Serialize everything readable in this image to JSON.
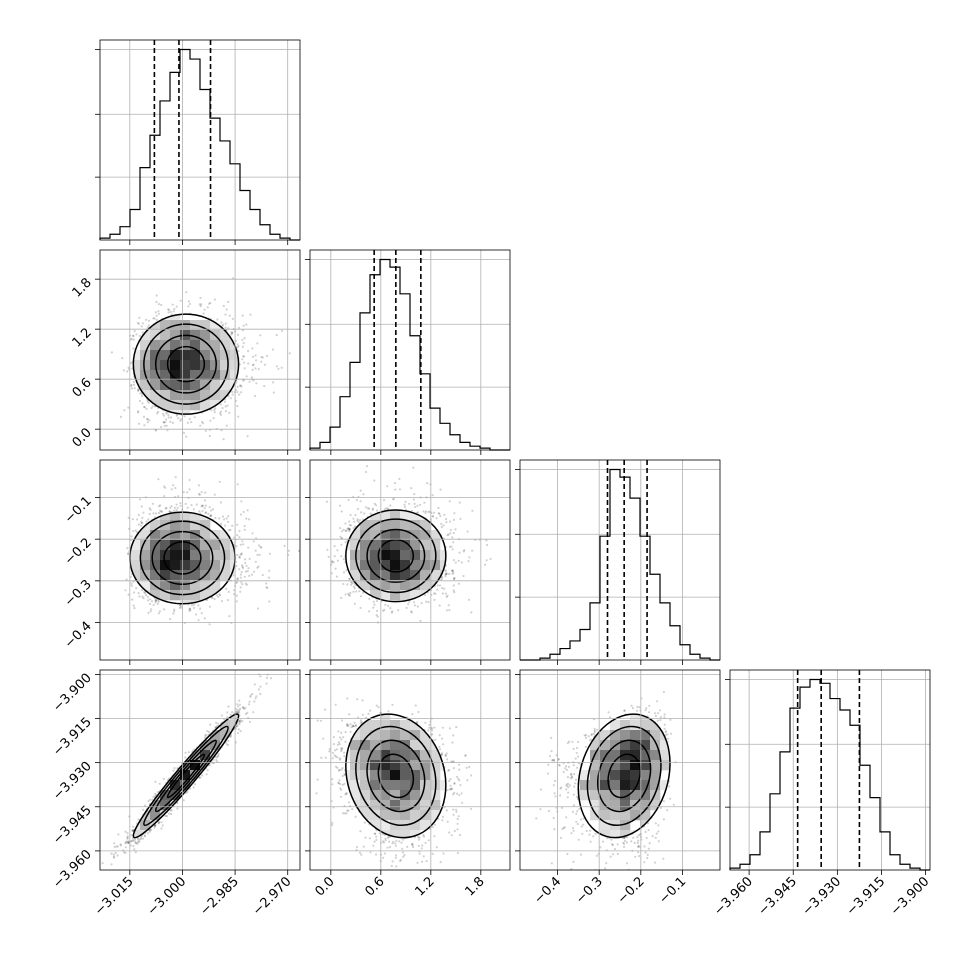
{
  "chart_data": {
    "type": "corner",
    "variables": [
      {
        "ticks": [
          -3.015,
          -3.0,
          -2.985,
          -2.97
        ],
        "tick_labels": [
          "−3.015",
          "−3.000",
          "−2.985",
          "−2.970"
        ],
        "range": [
          -3.0235,
          -2.9665
        ],
        "quantiles": [
          -3.008,
          -3.001,
          -2.992
        ]
      },
      {
        "ticks": [
          0.0,
          0.6,
          1.2,
          1.8
        ],
        "tick_labels": [
          "0.0",
          "0.6",
          "1.2",
          "1.8"
        ],
        "range": [
          -0.25,
          2.15
        ],
        "quantiles": [
          0.52,
          0.78,
          1.08
        ]
      },
      {
        "ticks": [
          -0.4,
          -0.3,
          -0.2,
          -0.1
        ],
        "tick_labels": [
          "−0.4",
          "−0.3",
          "−0.2",
          "−0.1"
        ],
        "range": [
          -0.49,
          -0.01
        ],
        "quantiles": [
          -0.28,
          -0.24,
          -0.185
        ]
      },
      {
        "ticks": [
          -3.96,
          -3.945,
          -3.93,
          -3.915,
          -3.9
        ],
        "tick_labels": [
          "−3.960",
          "−3.945",
          "−3.930",
          "−3.915",
          "−3.900"
        ],
        "range": [
          -3.9665,
          -3.8985
        ],
        "quantiles": [
          -3.9435,
          -3.9355,
          -3.9225
        ]
      }
    ],
    "histograms": [
      [
        1,
        3,
        7,
        16,
        38,
        55,
        73,
        88,
        100,
        95,
        79,
        64,
        52,
        40,
        26,
        16,
        8,
        3,
        1,
        0
      ],
      [
        1,
        4,
        12,
        28,
        46,
        72,
        92,
        100,
        96,
        82,
        60,
        40,
        22,
        14,
        8,
        4,
        2,
        1,
        0,
        0
      ],
      [
        0,
        0,
        1,
        3,
        6,
        10,
        16,
        30,
        65,
        100,
        96,
        85,
        65,
        45,
        30,
        18,
        8,
        3,
        1,
        0
      ],
      [
        1,
        3,
        8,
        20,
        40,
        62,
        85,
        96,
        100,
        98,
        90,
        84,
        76,
        55,
        38,
        20,
        8,
        3,
        1,
        0
      ]
    ],
    "pairs": [
      {
        "row": 1,
        "col": 0,
        "mean": [
          -2.999,
          0.78
        ],
        "sd": [
          0.0075,
          0.3
        ],
        "rho": 0.0,
        "skew": [
          0.002,
          0.0
        ]
      },
      {
        "row": 2,
        "col": 0,
        "mean": [
          -3.0,
          -0.245
        ],
        "sd": [
          0.0075,
          0.055
        ],
        "rho": 0.0,
        "skew": [
          0.003,
          0.01
        ]
      },
      {
        "row": 2,
        "col": 1,
        "mean": [
          0.78,
          -0.24
        ],
        "sd": [
          0.3,
          0.055
        ],
        "rho": 0.0,
        "skew": [
          0.05,
          0.01
        ]
      },
      {
        "row": 3,
        "col": 0,
        "mean": [
          -2.999,
          -3.9345
        ],
        "sd": [
          0.0075,
          0.0105
        ],
        "rho": 0.97,
        "skew": [
          0.0,
          0.0
        ]
      },
      {
        "row": 3,
        "col": 1,
        "mean": [
          0.78,
          -3.9345
        ],
        "sd": [
          0.3,
          0.0105
        ],
        "rho": -0.15,
        "skew": [
          0.0,
          -0.003
        ]
      },
      {
        "row": 3,
        "col": 2,
        "mean": [
          -0.24,
          -3.9345
        ],
        "sd": [
          0.055,
          0.0105
        ],
        "rho": 0.2,
        "skew": [
          -0.02,
          -0.003
        ]
      }
    ],
    "grid": true,
    "colors": {
      "line": "#000000",
      "grid": "#b0b0b0",
      "scatter": "#000000"
    }
  }
}
